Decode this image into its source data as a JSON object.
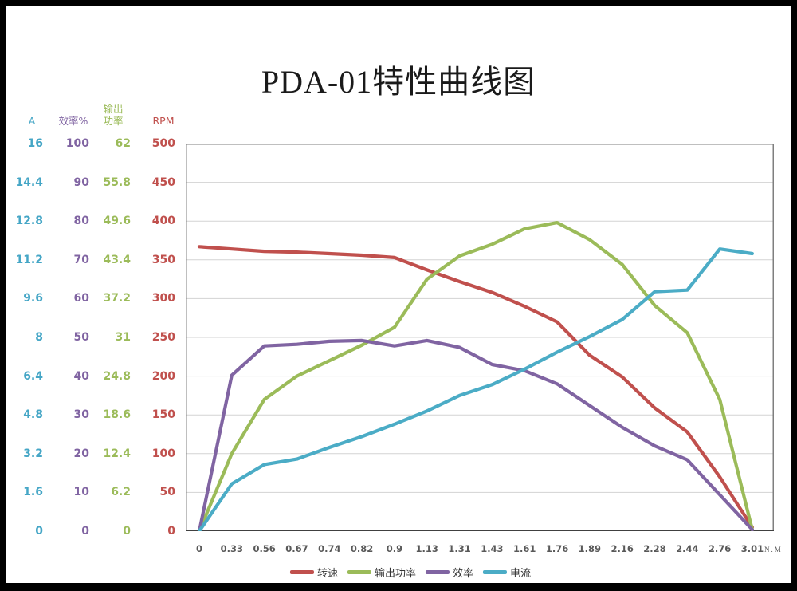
{
  "title": "PDA-01特性曲线图",
  "left_axis": {
    "columns": [
      {
        "id": "current",
        "header": "A",
        "color": "#45A6C6",
        "values": [
          "16",
          "14.4",
          "12.8",
          "11.2",
          "9.6",
          "8",
          "6.4",
          "4.8",
          "3.2",
          "1.6",
          "0"
        ]
      },
      {
        "id": "efficiency",
        "header": "效率%",
        "color": "#8064A2",
        "values": [
          "100",
          "90",
          "80",
          "70",
          "60",
          "50",
          "40",
          "30",
          "20",
          "10",
          "0"
        ]
      },
      {
        "id": "output-power",
        "header": "输出功率",
        "header_lines": [
          "输出",
          "功率"
        ],
        "color": "#9BBB59",
        "values": [
          "62",
          "55.8",
          "49.6",
          "43.4",
          "37.2",
          "31",
          "24.8",
          "18.6",
          "12.4",
          "6.2",
          "0"
        ]
      },
      {
        "id": "rpm",
        "header": "RPM",
        "color": "#C0504D",
        "values": [
          "500",
          "450",
          "400",
          "350",
          "300",
          "250",
          "200",
          "150",
          "100",
          "50",
          "0"
        ]
      }
    ]
  },
  "chart_data": {
    "type": "line",
    "title": "PDA-01特性曲线图",
    "categories": [
      "0",
      "0.33",
      "0.56",
      "0.67",
      "0.74",
      "0.82",
      "0.9",
      "1.13",
      "1.31",
      "1.43",
      "1.61",
      "1.76",
      "1.89",
      "2.16",
      "2.28",
      "2.44",
      "2.76",
      "3.01"
    ],
    "x_unit": "N.M",
    "ylim": [
      0,
      500
    ],
    "grid_interval": 50,
    "grid": true,
    "legend_position": "bottom",
    "values_scale": "shared plot grid 0-500 (RPM axis); A=grid/31.25, 效率%=grid/5, 输出功率W=grid*0.124",
    "series": [
      {
        "name": "转速",
        "axis": "RPM",
        "color": "#C0504D",
        "values": [
          367,
          364,
          361,
          360,
          358,
          356,
          353,
          337,
          322,
          308,
          290,
          270,
          227,
          199,
          159,
          128,
          70,
          5
        ]
      },
      {
        "name": "输出功率",
        "axis": "输出功率",
        "color": "#9BBB59",
        "values": [
          0,
          100,
          170,
          200,
          220,
          240,
          263,
          325,
          355,
          370,
          390,
          398,
          376,
          344,
          291,
          256,
          170,
          2
        ]
      },
      {
        "name": "效率",
        "axis": "效率%",
        "color": "#8064A2",
        "values": [
          0,
          201,
          239,
          241,
          245,
          246,
          239,
          246,
          237,
          215,
          207,
          190,
          162,
          134,
          110,
          92,
          47,
          2
        ]
      },
      {
        "name": "电流",
        "axis": "A",
        "color": "#4BACC6",
        "values": [
          0,
          61,
          86,
          93,
          108,
          122,
          138,
          155,
          175,
          189,
          209,
          231,
          251,
          273,
          309,
          311,
          364,
          358
        ]
      }
    ]
  }
}
